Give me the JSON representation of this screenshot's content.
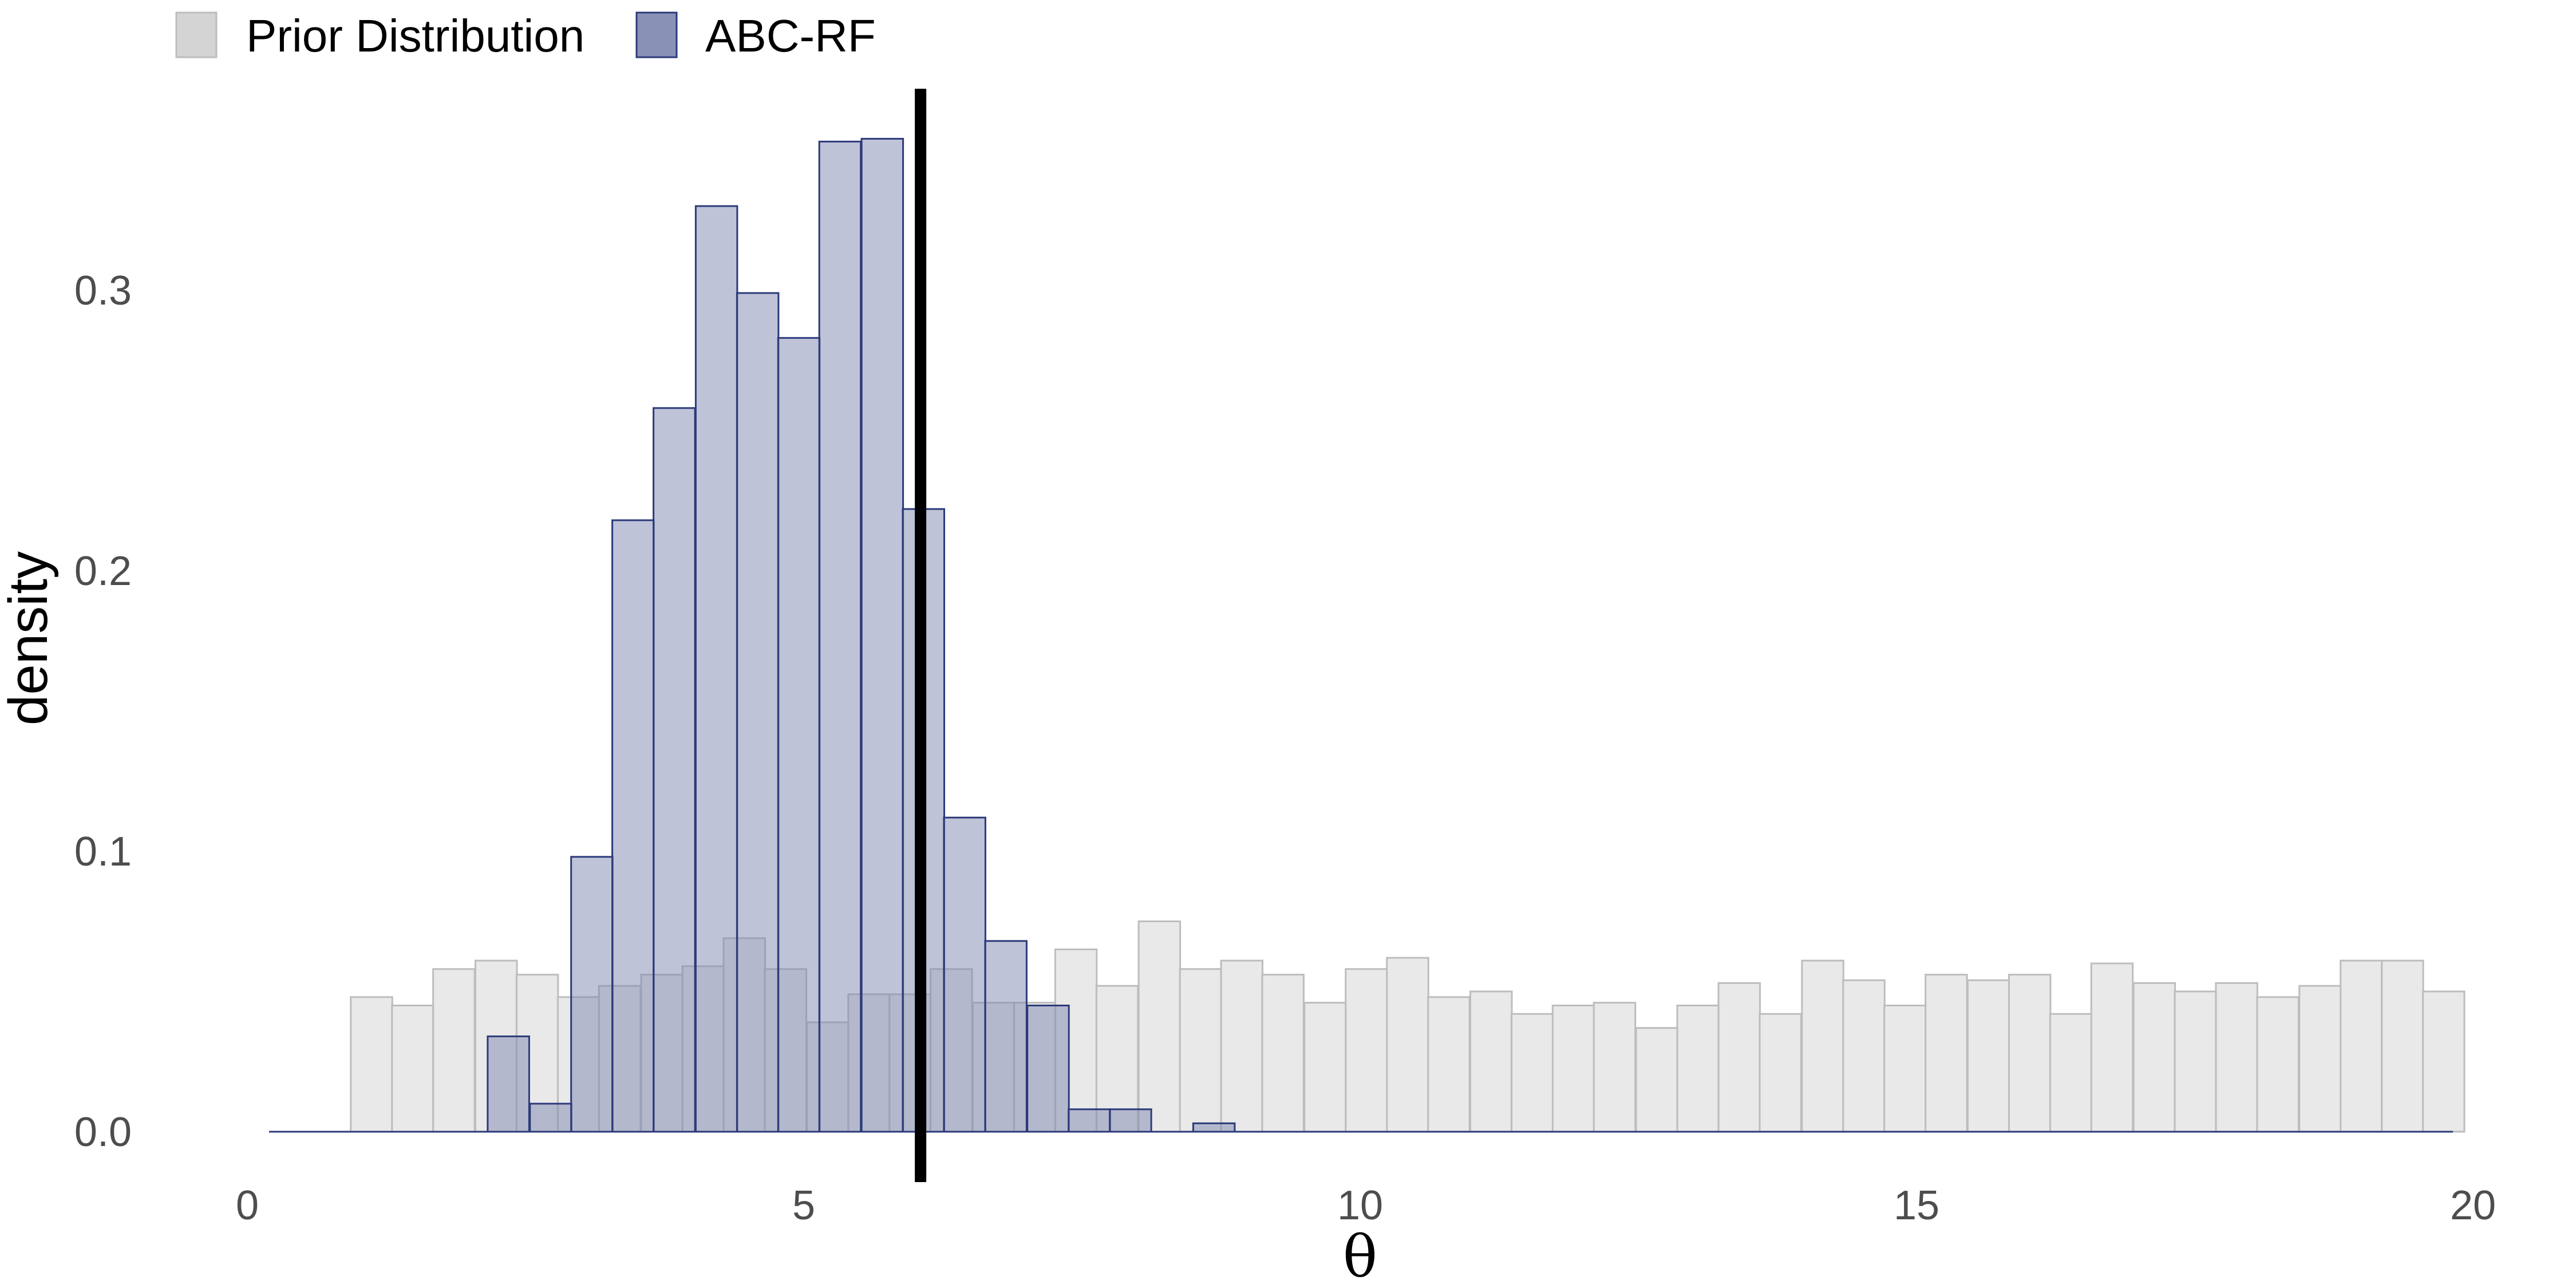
{
  "chart_data": {
    "type": "bar",
    "title": "",
    "xlabel": "θ",
    "ylabel": "density",
    "xlim": [
      0,
      20
    ],
    "ylim": [
      0,
      0.36
    ],
    "x_ticks": [
      0,
      5,
      10,
      15,
      20
    ],
    "y_ticks": [
      0.0,
      0.1,
      0.2,
      0.3
    ],
    "y_tick_labels": [
      "0.0",
      "0.1",
      "0.2",
      "0.3"
    ],
    "grid": false,
    "legend_position": "top-left",
    "bin_width": 0.3727,
    "reference_line_x": 6.05,
    "series": [
      {
        "name": "Prior Distribution",
        "color": "#bdbdbd",
        "fill": "#e5e5e5",
        "bins_left": [
          0.93,
          1.3,
          1.67,
          2.05,
          2.42,
          2.79,
          3.16,
          3.54,
          3.91,
          4.28,
          4.65,
          5.03,
          5.4,
          5.77,
          6.14,
          6.52,
          6.89,
          7.26,
          7.63,
          8.01,
          8.38,
          8.75,
          9.12,
          9.5,
          9.87,
          10.24,
          10.61,
          10.99,
          11.36,
          11.73,
          12.1,
          12.48,
          12.85,
          13.22,
          13.59,
          13.97,
          14.34,
          14.71,
          15.08,
          15.46,
          15.83,
          16.2,
          16.57,
          16.95,
          17.32,
          17.69,
          18.06,
          18.44,
          18.81,
          19.18,
          19.55
        ],
        "values": [
          0.048,
          0.045,
          0.058,
          0.061,
          0.056,
          0.048,
          0.052,
          0.056,
          0.059,
          0.069,
          0.058,
          0.039,
          0.049,
          0.049,
          0.058,
          0.046,
          0.046,
          0.065,
          0.052,
          0.075,
          0.058,
          0.061,
          0.056,
          0.046,
          0.058,
          0.062,
          0.048,
          0.05,
          0.042,
          0.045,
          0.046,
          0.037,
          0.045,
          0.053,
          0.042,
          0.061,
          0.054,
          0.045,
          0.056,
          0.054,
          0.056,
          0.042,
          0.06,
          0.053,
          0.05,
          0.053,
          0.048,
          0.052,
          0.061,
          0.061,
          0.05
        ]
      },
      {
        "name": "ABC-RF",
        "color": "#2c3a7a",
        "fill": "#8088b2",
        "bins_left": [
          -0.07,
          0.3,
          0.67,
          1.05,
          1.42,
          1.79,
          2.16,
          2.54,
          2.91,
          3.28,
          3.65,
          4.03,
          4.4,
          4.77,
          5.14,
          5.52,
          5.89,
          6.26,
          6.63,
          7.01,
          7.38,
          7.75,
          8.12,
          8.5,
          8.87,
          9.24,
          9.61,
          9.99,
          10.36,
          10.73,
          11.1,
          11.48,
          11.85,
          12.22,
          12.59,
          12.97,
          13.34,
          13.71,
          14.08,
          14.46,
          14.83,
          15.2,
          15.57,
          15.95,
          16.32,
          16.69,
          17.06,
          17.44,
          17.81,
          18.18,
          18.55,
          18.93,
          19.3
        ],
        "values": [
          0,
          0,
          0,
          0,
          0,
          0,
          0.034,
          0.01,
          0.098,
          0.218,
          0.258,
          0.33,
          0.299,
          0.283,
          0.353,
          0.354,
          0.222,
          0.112,
          0.068,
          0.045,
          0.008,
          0.008,
          0,
          0.003,
          0,
          0,
          0,
          0,
          0,
          0,
          0,
          0,
          0,
          0,
          0,
          0,
          0,
          0,
          0,
          0,
          0,
          0,
          0,
          0,
          0,
          0,
          0,
          0,
          0,
          0,
          0,
          0,
          0
        ]
      }
    ]
  }
}
